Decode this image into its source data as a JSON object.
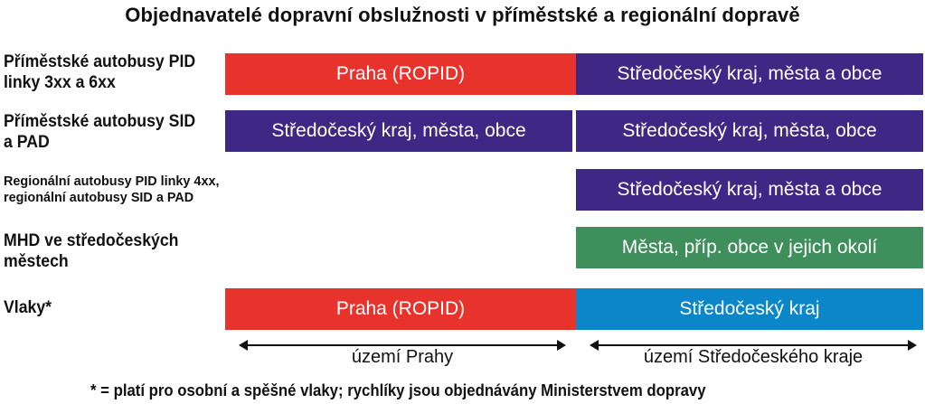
{
  "title": "Objednavatelé dopravní obslužnosti v příměstské a regionální dopravě",
  "colors": {
    "red": "#e8332c",
    "purple": "#3f2786",
    "green": "#3f8f5c",
    "blue": "#0a86c9"
  },
  "rows": [
    {
      "label_line1": "Příměstské autobusy PID",
      "label_line2": "linky 3xx a 6xx",
      "left_bar": "Praha (ROPID)",
      "right_bar": "Středočeský kraj, města a obce"
    },
    {
      "label_line1": "Příměstské autobusy SID",
      "label_line2": "a PAD",
      "left_bar": "Středočeský kraj, města, obce",
      "right_bar": "Středočeský kraj, města, obce"
    },
    {
      "label_line1": "Regionální autobusy PID linky 4xx,",
      "label_line2": "regionální autobusy SID a PAD",
      "right_bar": "Středočeský kraj, města a obce"
    },
    {
      "label_line1": "MHD ve středočeských",
      "label_line2": "městech",
      "right_bar": "Města, příp. obce v jejich okolí"
    },
    {
      "label_line1": "Vlaky*",
      "left_bar": "Praha (ROPID)",
      "right_bar": "Středočeský kraj"
    }
  ],
  "axis": {
    "left_label": "území Prahy",
    "right_label": "území Středočeského kraje"
  },
  "footnote": "* = platí pro osobní a spěšné vlaky; rychlíky jsou objednávány Ministerstvem dopravy"
}
